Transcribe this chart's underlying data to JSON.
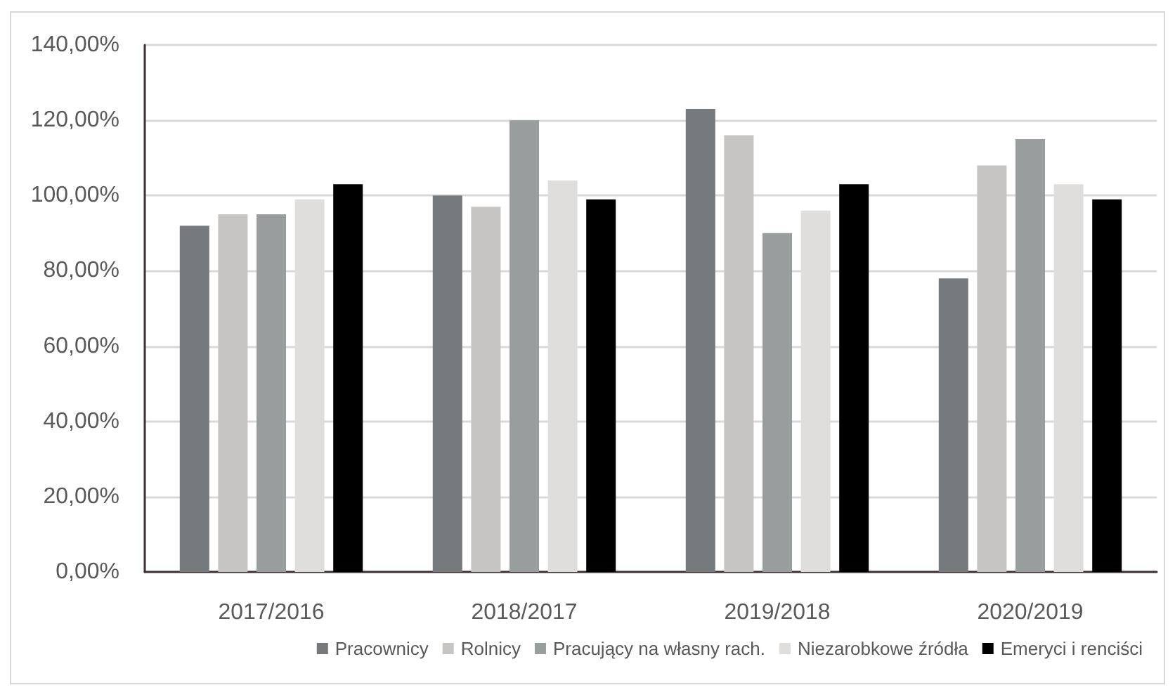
{
  "chart_data": {
    "type": "bar",
    "categories": [
      "2017/2016",
      "2018/2017",
      "2019/2018",
      "2020/2019"
    ],
    "series": [
      {
        "name": "Pracownicy",
        "color": "#76797c",
        "values": [
          92,
          100,
          123,
          78
        ]
      },
      {
        "name": "Rolnicy",
        "color": "#c6c5c3",
        "values": [
          95,
          97,
          116,
          108
        ]
      },
      {
        "name": "Pracujący na własny rach.",
        "color": "#9a9d9d",
        "values": [
          95,
          120,
          90,
          115
        ]
      },
      {
        "name": "Niezarobkowe źródła",
        "color": "#dfdedc",
        "values": [
          99,
          104,
          96,
          103
        ]
      },
      {
        "name": "Emeryci i renciści",
        "color": "#000000",
        "values": [
          103,
          99,
          103,
          99
        ]
      }
    ],
    "ylim": [
      0,
      140
    ],
    "yticks": [
      {
        "value": 0,
        "label": "0,00%"
      },
      {
        "value": 20,
        "label": "20,00%"
      },
      {
        "value": 40,
        "label": "40,00%"
      },
      {
        "value": 60,
        "label": "60,00%"
      },
      {
        "value": 80,
        "label": "80,00%"
      },
      {
        "value": 100,
        "label": "100,00%"
      },
      {
        "value": 120,
        "label": "120,00%"
      },
      {
        "value": 140,
        "label": "140,00%"
      }
    ],
    "grid": "y",
    "legend": "bottom"
  }
}
